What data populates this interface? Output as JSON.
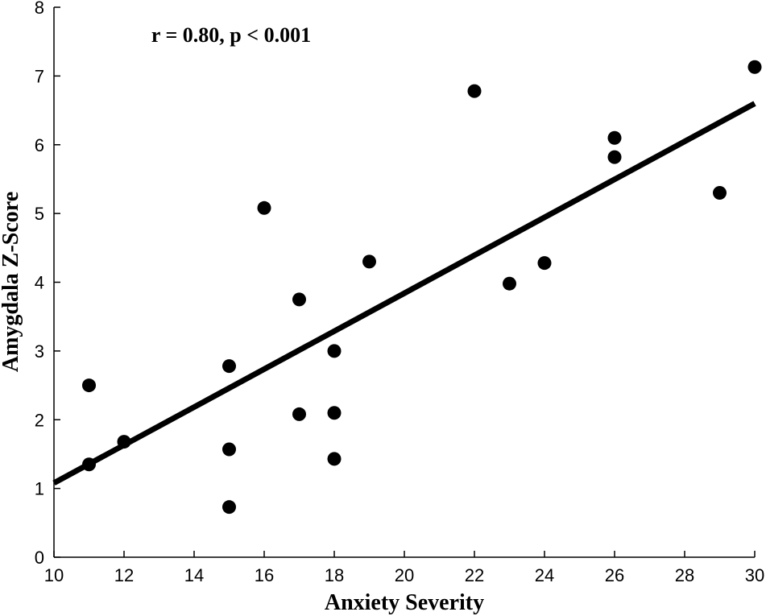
{
  "chart_data": {
    "type": "scatter",
    "annotation": "r = 0.80, p < 0.001",
    "x_label": "Anxiety Severity",
    "y_label": "Amygdala Z-Score",
    "x": [
      11,
      11,
      12,
      15,
      15,
      15,
      16,
      17,
      17,
      18,
      18,
      18,
      19,
      22,
      23,
      24,
      26,
      26,
      29,
      30
    ],
    "y": [
      2.5,
      1.35,
      1.68,
      2.78,
      1.57,
      0.73,
      5.08,
      3.75,
      2.08,
      3.0,
      2.1,
      1.43,
      4.3,
      6.78,
      3.98,
      4.28,
      6.1,
      5.82,
      5.3,
      7.13
    ],
    "color": "#000000",
    "fit_line": {
      "x": [
        10,
        30
      ],
      "y": [
        1.08,
        6.6
      ]
    },
    "xlim": [
      10,
      30
    ],
    "xticks": [
      10,
      12,
      14,
      16,
      18,
      20,
      22,
      24,
      26,
      28,
      30
    ],
    "ylim": [
      0,
      8
    ],
    "yticks": [
      0,
      1,
      2,
      3,
      4,
      5,
      6,
      7,
      8
    ]
  }
}
